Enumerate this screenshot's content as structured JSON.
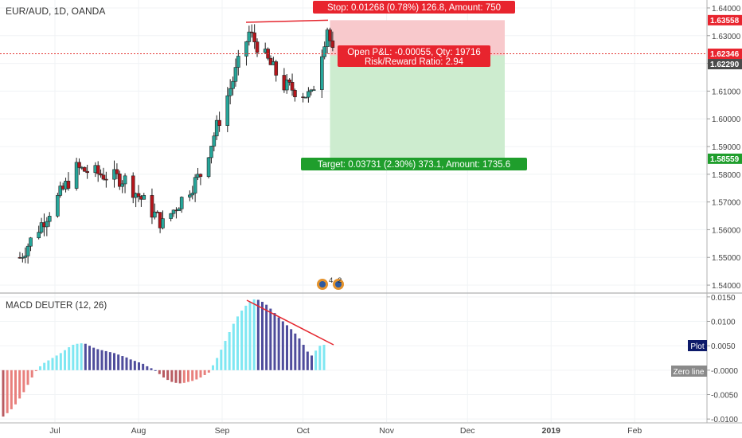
{
  "header": {
    "symbol_label": "EUR/AUD, 1D, OANDA"
  },
  "indicator": {
    "label": "MACD DEUTER (12, 26)",
    "plot_badge": "Plot",
    "zero_badge": "Zero line"
  },
  "position": {
    "stop_label": "Stop: 0.01268 (0.78%) 126.8, Amount: 750",
    "pnl_label": "Open P&L: -0.00055, Qty: 19716",
    "rr_label": "Risk/Reward Ratio: 2.94",
    "target_label": "Target: 0.03731 (2.30%) 373.1, Amount: 1735.6",
    "stop_price": 1.63558,
    "entry_price": 1.6229,
    "target_price": 1.58559,
    "current_price": 1.62346
  },
  "events_badge": {
    "count": "4",
    "count2": "2"
  },
  "colors": {
    "up": "#26a69a",
    "down": "#b5151b",
    "current_line": "#e53935",
    "stop_fill": "#f8c9cc",
    "target_fill": "#cdeccf",
    "stop_label_bg": "#e8242e",
    "target_label_bg": "#1f9e2c",
    "hist_up_light": "#7ee7f2",
    "hist_down_dark": "#4f4d9c",
    "hist_neg_light": "#e8807d",
    "hist_neg_dark": "#b85b62",
    "trendline": "#e5262e",
    "badge_blue": "#0d1a6a",
    "badge_gray": "#8a8a8a"
  },
  "chart_data": [
    {
      "type": "candlestick",
      "title": "EUR/AUD, 1D, OANDA",
      "x_tick_labels": [
        "Jul",
        "Aug",
        "Sep",
        "Oct",
        "Nov",
        "Dec",
        "2019",
        "Feb"
      ],
      "price_ticks": [
        "1.64000",
        "1.63000",
        "1.62000",
        "1.61000",
        "1.60000",
        "1.59000",
        "1.58000",
        "1.57000",
        "1.56000",
        "1.55000",
        "1.54000"
      ],
      "price_badges": [
        {
          "text": "1.63558",
          "price": 1.63558,
          "style": "stop"
        },
        {
          "text": "1.62346",
          "price": 1.62346,
          "style": "current"
        },
        {
          "text": "1.62290",
          "price": 1.6229,
          "style": "entry"
        },
        {
          "text": "1.58559",
          "price": 1.58559,
          "style": "target"
        }
      ],
      "ylim": [
        1.538,
        1.642
      ],
      "key_points": [
        {
          "date": "2018-06-18",
          "price": 1.55
        },
        {
          "date": "2018-07-09",
          "price": 1.582
        },
        {
          "date": "2018-07-27",
          "price": 1.578
        },
        {
          "date": "2018-08-10",
          "price": 1.562
        },
        {
          "date": "2018-08-24",
          "price": 1.58
        },
        {
          "date": "2018-09-11",
          "price": 1.631
        },
        {
          "date": "2018-09-24",
          "price": 1.612
        },
        {
          "date": "2018-10-04",
          "price": 1.608
        },
        {
          "date": "2018-10-10",
          "price": 1.633
        },
        {
          "date": "2018-10-12",
          "price": 1.6234
        }
      ]
    },
    {
      "type": "bar",
      "title": "MACD DEUTER (12, 26)",
      "y_tick_labels": [
        "0.0150",
        "0.0100",
        "0.0050",
        "-0.0000",
        "-0.0050",
        "-0.0100"
      ],
      "ylim": [
        -0.0103,
        0.0153
      ],
      "histogram_values": [
        -0.0095,
        -0.0088,
        -0.008,
        -0.007,
        -0.0058,
        -0.0045,
        -0.003,
        -0.0015,
        -0.0002,
        0.0008,
        0.0015,
        0.002,
        0.0025,
        0.003,
        0.0035,
        0.0041,
        0.0047,
        0.0052,
        0.0054,
        0.0055,
        0.0054,
        0.005,
        0.0046,
        0.0043,
        0.0041,
        0.0039,
        0.0037,
        0.0035,
        0.0032,
        0.0029,
        0.0026,
        0.0022,
        0.0019,
        0.0016,
        0.0013,
        0.0008,
        0.0004,
        0.0,
        -0.0008,
        -0.0015,
        -0.002,
        -0.0024,
        -0.0026,
        -0.0027,
        -0.0026,
        -0.0024,
        -0.0022,
        -0.0019,
        -0.0015,
        -0.001,
        -0.0005,
        0.001,
        0.0025,
        0.0042,
        0.006,
        0.0078,
        0.0095,
        0.011,
        0.0122,
        0.0132,
        0.014,
        0.0145,
        0.0144,
        0.014,
        0.0134,
        0.0126,
        0.0117,
        0.0108,
        0.01,
        0.0092,
        0.0084,
        0.0075,
        0.0065,
        0.0052,
        0.0038,
        0.003,
        0.004,
        0.005,
        0.0052
      ]
    }
  ]
}
